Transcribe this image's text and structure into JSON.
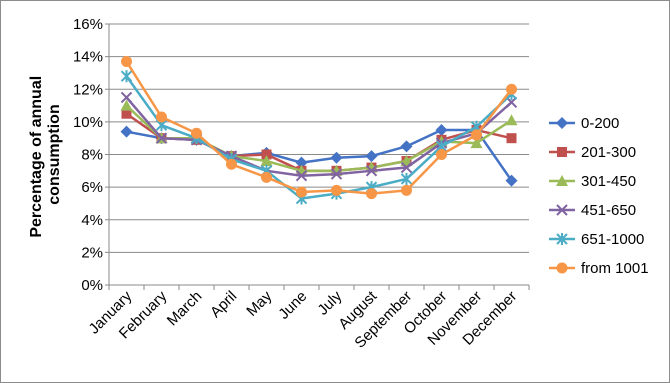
{
  "chart_data": {
    "type": "line",
    "title": "",
    "xlabel": "",
    "ylabel": "Percentage of annual consumption",
    "ylabel_lines": [
      "Percentage of annual",
      "consumption"
    ],
    "ylim": [
      0,
      16
    ],
    "yticks": [
      0,
      2,
      4,
      6,
      8,
      10,
      12,
      14,
      16
    ],
    "ytick_labels": [
      "0%",
      "2%",
      "4%",
      "6%",
      "8%",
      "10%",
      "12%",
      "14%",
      "16%"
    ],
    "grid": "horizontal",
    "legend_position": "right",
    "categories": [
      "January",
      "February",
      "March",
      "April",
      "May",
      "June",
      "July",
      "August",
      "September",
      "October",
      "November",
      "December"
    ],
    "series": [
      {
        "name": "0-200",
        "color": "#4472c4",
        "marker": "diamond",
        "values": [
          9.4,
          9.0,
          8.9,
          7.9,
          8.1,
          7.5,
          7.8,
          7.9,
          8.5,
          9.5,
          9.5,
          6.4
        ]
      },
      {
        "name": "201-300",
        "color": "#c0504d",
        "marker": "square",
        "values": [
          10.5,
          9.0,
          8.9,
          7.9,
          8.0,
          7.0,
          7.0,
          7.2,
          7.6,
          8.9,
          9.5,
          9.0
        ]
      },
      {
        "name": "301-450",
        "color": "#9bbb59",
        "marker": "triangle",
        "values": [
          11.0,
          9.0,
          9.0,
          7.9,
          7.6,
          7.0,
          7.0,
          7.2,
          7.6,
          8.8,
          8.7,
          10.1
        ]
      },
      {
        "name": "451-650",
        "color": "#8064a2",
        "marker": "x",
        "values": [
          11.5,
          9.0,
          8.9,
          7.9,
          7.0,
          6.7,
          6.8,
          7.0,
          7.2,
          8.7,
          9.3,
          11.2
        ]
      },
      {
        "name": "651-1000",
        "color": "#4bacc6",
        "marker": "star",
        "values": [
          12.8,
          9.8,
          9.0,
          7.7,
          7.0,
          5.3,
          5.6,
          6.0,
          6.5,
          8.5,
          9.7,
          11.7
        ]
      },
      {
        "name": "from 1001",
        "color": "#f79646",
        "marker": "circle",
        "values": [
          13.7,
          10.3,
          9.3,
          7.4,
          6.6,
          5.7,
          5.8,
          5.6,
          5.8,
          8.0,
          9.2,
          12.0
        ]
      }
    ]
  }
}
